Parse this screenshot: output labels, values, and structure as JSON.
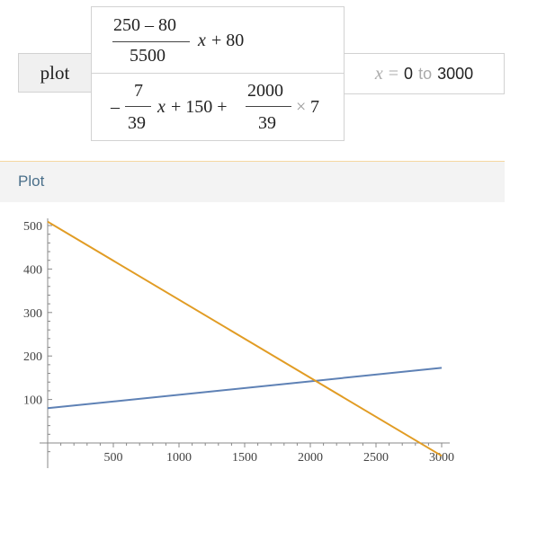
{
  "input": {
    "command": "plot",
    "f1": {
      "num": "250 – 80",
      "den": "5500",
      "x": "x",
      "rest": "+ 80"
    },
    "f2": {
      "lead": "–",
      "num1": "7",
      "den1": "39",
      "x": "x",
      "mid": "+ 150 +",
      "num2": "2000",
      "den2": "39",
      "times": "×",
      "seven": "7"
    },
    "range": {
      "var": "x",
      "eq": "=",
      "from": "0",
      "to_word": "to",
      "to": "3000"
    }
  },
  "section": {
    "title": "Plot"
  },
  "chart_data": {
    "type": "line",
    "xlim": [
      0,
      3000
    ],
    "ylim": [
      -30,
      520
    ],
    "x_ticks": [
      500,
      1000,
      1500,
      2000,
      2500,
      3000
    ],
    "y_ticks": [
      100,
      200,
      300,
      400,
      500
    ],
    "series": [
      {
        "color": "#5e81b5",
        "x": [
          0,
          3000
        ],
        "y": [
          80,
          172.73
        ]
      },
      {
        "color": "#e19c24",
        "x": [
          0,
          3000
        ],
        "y": [
          508.97,
          -29.49
        ]
      }
    ]
  }
}
